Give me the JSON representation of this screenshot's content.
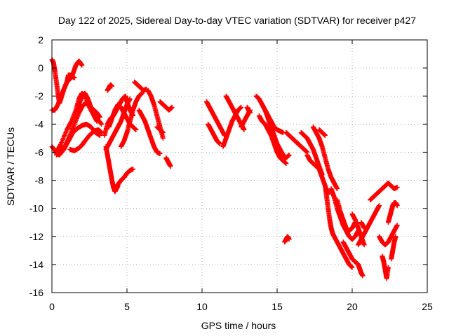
{
  "chart_data": {
    "type": "scatter",
    "title": "Day 122 of 2025, Sidereal Day-to-day VTEC variation (SDTVAR) for receiver p427",
    "xlabel": "GPS time / hours",
    "ylabel": "SDTVAR / TECUs",
    "xlim": [
      0,
      25
    ],
    "ylim": [
      -16,
      2
    ],
    "xticks": [
      0,
      5,
      10,
      15,
      20,
      25
    ],
    "yticks": [
      2,
      0,
      -2,
      -4,
      -6,
      -8,
      -10,
      -12,
      -14,
      -16
    ],
    "grid": true,
    "marker": "+",
    "series": [
      {
        "name": "SDTVAR",
        "color": "#ff0000",
        "tracks": [
          {
            "x": [
              0.0,
              0.2,
              0.4,
              0.6,
              0.8,
              1.0,
              1.2,
              1.4,
              1.6,
              1.8,
              2.0
            ],
            "y": [
              -3.0,
              -3.0,
              -2.6,
              -2.1,
              -1.5,
              -1.0,
              -0.8,
              -0.4,
              0.2,
              0.5,
              0.2
            ]
          },
          {
            "x": [
              0.0,
              0.1,
              0.2,
              0.3,
              0.4,
              0.5,
              0.6,
              0.8,
              1.0,
              1.1,
              1.2,
              1.5
            ],
            "y": [
              0.6,
              0.4,
              -0.2,
              -1.0,
              -1.8,
              -2.5,
              -2.2,
              -1.5,
              -1.0,
              -0.5,
              -0.5,
              -0.7
            ]
          },
          {
            "x": [
              0.0,
              0.3,
              0.6,
              1.0,
              1.3,
              1.6,
              1.8,
              2.0,
              2.2,
              2.5,
              2.8,
              3.0
            ],
            "y": [
              -5.6,
              -6.0,
              -5.4,
              -4.4,
              -3.8,
              -3.0,
              -2.2,
              -1.8,
              -2.0,
              -2.8,
              -3.4,
              -3.8
            ]
          },
          {
            "x": [
              0.2,
              0.5,
              0.8,
              1.1,
              1.4,
              1.7,
              2.0,
              2.3,
              2.6,
              2.9,
              3.2
            ],
            "y": [
              -6.0,
              -6.2,
              -5.8,
              -5.2,
              -4.6,
              -4.3,
              -4.1,
              -4.0,
              -4.2,
              -4.6,
              -4.8
            ]
          },
          {
            "x": [
              0.3,
              0.6,
              0.9,
              1.2,
              1.5,
              1.8,
              2.1,
              2.4,
              2.7,
              3.0,
              3.3
            ],
            "y": [
              -6.2,
              -5.9,
              -5.5,
              -4.8,
              -4.0,
              -3.2,
              -2.6,
              -2.5,
              -3.0,
              -3.6,
              -4.0
            ]
          },
          {
            "x": [
              1.2,
              1.5,
              1.8,
              2.0,
              2.2,
              2.5,
              2.8,
              3.1,
              3.3
            ],
            "y": [
              -5.8,
              -5.9,
              -5.7,
              -5.5,
              -5.2,
              -4.8,
              -4.5,
              -4.4,
              -4.6
            ]
          },
          {
            "x": [
              1.6,
              1.8,
              2.0,
              2.2,
              2.4,
              2.6,
              2.8,
              3.0,
              3.2
            ],
            "y": [
              -3.2,
              -2.6,
              -2.0,
              -1.8,
              -2.2,
              -2.8,
              -3.0,
              -3.2,
              -3.5
            ]
          },
          {
            "x": [
              3.6,
              3.7,
              3.8,
              3.9,
              4.0,
              4.1,
              4.2,
              4.3,
              4.4
            ],
            "y": [
              -5.6,
              -6.2,
              -6.8,
              -7.4,
              -8.0,
              -8.5,
              -8.8,
              -8.6,
              -8.4
            ]
          },
          {
            "x": [
              3.5,
              3.7,
              3.9,
              4.1,
              4.3,
              4.5,
              4.7,
              4.9,
              5.0,
              5.2,
              5.4
            ],
            "y": [
              -4.8,
              -4.0,
              -3.6,
              -3.4,
              -3.0,
              -2.6,
              -2.2,
              -2.0,
              -2.4,
              -3.0,
              -3.4
            ]
          },
          {
            "x": [
              3.6,
              3.8,
              4.0,
              4.2,
              4.4,
              4.6,
              4.8,
              5.0,
              5.2
            ],
            "y": [
              -5.8,
              -5.4,
              -5.0,
              -4.6,
              -4.2,
              -3.8,
              -3.2,
              -2.6,
              -2.2
            ]
          },
          {
            "x": [
              3.8,
              4.0,
              4.2,
              4.4,
              4.6,
              4.8,
              5.0,
              5.2,
              5.4,
              5.6
            ],
            "y": [
              -4.2,
              -3.6,
              -3.0,
              -2.6,
              -2.8,
              -3.2,
              -3.6,
              -4.0,
              -4.2,
              -4.4
            ]
          },
          {
            "x": [
              4.2,
              4.4,
              4.6,
              4.8,
              5.0,
              5.2,
              5.4
            ],
            "y": [
              -8.6,
              -8.3,
              -8.0,
              -7.8,
              -7.5,
              -7.3,
              -7.2
            ]
          },
          {
            "x": [
              4.6,
              4.8,
              5.0,
              5.2,
              5.4,
              5.6,
              5.8,
              6.0
            ],
            "y": [
              -5.6,
              -5.2,
              -4.6,
              -3.8,
              -3.0,
              -2.4,
              -2.0,
              -1.8
            ]
          },
          {
            "x": [
              3.7,
              3.8,
              3.9,
              4.0
            ],
            "y": [
              -1.6,
              -1.4,
              -1.2,
              -1.3
            ]
          },
          {
            "x": [
              5.5,
              5.7,
              5.9,
              6.1,
              6.3
            ],
            "y": [
              -1.0,
              -1.2,
              -1.4,
              -1.6,
              -1.5
            ]
          },
          {
            "x": [
              5.8,
              6.0,
              6.2,
              6.4,
              6.6,
              6.8,
              7.0,
              7.2
            ],
            "y": [
              -3.0,
              -3.4,
              -3.8,
              -4.4,
              -5.0,
              -5.6,
              -6.0,
              -6.1
            ]
          },
          {
            "x": [
              6.4,
              6.6,
              6.8,
              7.0,
              7.2,
              7.4
            ],
            "y": [
              -1.6,
              -2.0,
              -2.6,
              -3.4,
              -4.2,
              -5.0
            ]
          },
          {
            "x": [
              7.2,
              7.4,
              7.6,
              7.8,
              8.0
            ],
            "y": [
              -2.4,
              -2.6,
              -2.8,
              -3.0,
              -2.8
            ]
          },
          {
            "x": [
              7.6,
              7.7,
              7.8,
              7.9
            ],
            "y": [
              -6.4,
              -6.6,
              -6.8,
              -7.0
            ]
          },
          {
            "x": [
              7.0,
              7.2,
              7.4
            ],
            "y": [
              -4.2,
              -4.4,
              -4.6
            ]
          },
          {
            "x": [
              10.3,
              10.5,
              10.7,
              10.9,
              11.1,
              11.3,
              11.5
            ],
            "y": [
              -2.4,
              -2.8,
              -3.2,
              -3.6,
              -4.0,
              -4.4,
              -4.8
            ]
          },
          {
            "x": [
              10.4,
              10.6,
              10.8,
              11.0,
              11.2
            ],
            "y": [
              -4.0,
              -4.4,
              -4.8,
              -5.2,
              -5.4
            ]
          },
          {
            "x": [
              11.4,
              11.6,
              11.8,
              12.0,
              12.2,
              12.4,
              12.6
            ],
            "y": [
              -5.6,
              -5.0,
              -4.4,
              -3.8,
              -3.4,
              -3.0,
              -2.8
            ]
          },
          {
            "x": [
              11.6,
              11.8,
              12.0,
              12.2,
              12.4,
              12.6,
              12.8
            ],
            "y": [
              -2.0,
              -2.4,
              -2.8,
              -3.2,
              -3.6,
              -4.0,
              -4.4
            ]
          },
          {
            "x": [
              12.6,
              12.8,
              13.0,
              13.2
            ],
            "y": [
              -4.2,
              -3.8,
              -3.4,
              -3.0
            ]
          },
          {
            "x": [
              13.0,
              13.1,
              13.2
            ],
            "y": [
              -2.8,
              -3.0,
              -3.2
            ]
          },
          {
            "x": [
              13.6,
              13.8,
              14.0,
              14.2,
              14.4,
              14.6,
              14.8,
              15.0,
              15.2,
              15.4
            ],
            "y": [
              -2.0,
              -2.2,
              -2.6,
              -3.0,
              -3.4,
              -3.8,
              -4.2,
              -4.4,
              -4.5,
              -4.6
            ]
          },
          {
            "x": [
              13.8,
              14.0,
              14.2,
              14.4,
              14.6,
              14.8,
              15.0,
              15.2,
              15.4,
              15.6
            ],
            "y": [
              -3.4,
              -3.8,
              -4.0,
              -4.4,
              -4.8,
              -5.4,
              -6.0,
              -6.4,
              -6.6,
              -6.8
            ]
          },
          {
            "x": [
              14.0,
              14.2,
              14.4,
              14.6,
              14.8,
              15.0,
              15.2,
              15.4,
              15.6,
              15.8
            ],
            "y": [
              -2.6,
              -3.0,
              -3.6,
              -4.2,
              -4.8,
              -5.4,
              -5.8,
              -6.2,
              -6.4,
              -6.2
            ]
          },
          {
            "x": [
              15.6,
              15.8,
              16.0,
              16.2,
              16.4,
              16.6,
              16.8,
              17.0
            ],
            "y": [
              -4.6,
              -4.8,
              -5.0,
              -5.2,
              -5.4,
              -5.6,
              -5.8,
              -6.0
            ]
          },
          {
            "x": [
              16.6,
              16.8,
              17.0,
              17.2,
              17.4,
              17.6,
              17.8,
              18.0
            ],
            "y": [
              -4.6,
              -4.8,
              -5.0,
              -5.4,
              -5.8,
              -6.4,
              -7.0,
              -7.6
            ]
          },
          {
            "x": [
              17.0,
              17.2,
              17.4,
              17.6,
              17.8,
              18.0,
              18.2,
              18.4
            ],
            "y": [
              -6.2,
              -6.6,
              -6.8,
              -7.0,
              -7.2,
              -7.8,
              -8.4,
              -9.0
            ]
          },
          {
            "x": [
              17.4,
              17.6,
              17.8,
              18.0,
              18.2,
              18.4,
              18.6,
              18.8,
              19.0
            ],
            "y": [
              -4.2,
              -4.6,
              -5.0,
              -5.6,
              -6.4,
              -7.2,
              -7.8,
              -8.2,
              -8.6
            ]
          },
          {
            "x": [
              18.2,
              18.3,
              18.4,
              18.5,
              18.6,
              18.7,
              18.8,
              19.0,
              19.2,
              19.4,
              19.6,
              19.8,
              20.0
            ],
            "y": [
              -8.4,
              -9.2,
              -10.0,
              -10.8,
              -11.4,
              -11.8,
              -12.0,
              -12.4,
              -12.8,
              -13.2,
              -13.6,
              -14.0,
              -14.2
            ]
          },
          {
            "x": [
              18.6,
              18.8,
              19.0,
              19.2,
              19.4,
              19.6,
              19.8,
              20.0,
              20.2,
              20.4
            ],
            "y": [
              -8.6,
              -9.2,
              -10.0,
              -10.6,
              -11.2,
              -11.6,
              -12.0,
              -12.2,
              -12.0,
              -11.6
            ]
          },
          {
            "x": [
              19.0,
              19.2,
              19.4,
              19.6,
              19.8,
              20.0,
              20.2
            ],
            "y": [
              -9.4,
              -10.2,
              -10.8,
              -11.4,
              -11.6,
              -11.4,
              -11.0
            ]
          },
          {
            "x": [
              19.4,
              19.6,
              19.8,
              20.0,
              20.2,
              20.4
            ],
            "y": [
              -12.4,
              -12.8,
              -13.2,
              -13.6,
              -13.8,
              -14.0
            ]
          },
          {
            "x": [
              20.0,
              20.2,
              20.4,
              20.6,
              20.8
            ],
            "y": [
              -10.4,
              -10.8,
              -11.4,
              -12.0,
              -12.6
            ]
          },
          {
            "x": [
              20.4,
              20.6,
              20.8,
              21.0,
              21.2,
              21.4,
              21.6,
              21.8
            ],
            "y": [
              -12.6,
              -12.2,
              -11.8,
              -11.4,
              -11.0,
              -10.6,
              -10.2,
              -9.8
            ]
          },
          {
            "x": [
              21.2,
              21.4,
              21.6,
              21.8,
              22.0,
              22.2,
              22.4,
              22.6,
              22.8,
              23.0
            ],
            "y": [
              -9.4,
              -9.2,
              -9.0,
              -8.8,
              -8.6,
              -8.4,
              -8.2,
              -8.4,
              -8.6,
              -8.5
            ]
          },
          {
            "x": [
              21.8,
              22.0,
              22.2,
              22.4,
              22.6,
              22.8,
              23.0
            ],
            "y": [
              -12.0,
              -12.4,
              -12.6,
              -12.4,
              -12.0,
              -11.6,
              -11.2
            ]
          },
          {
            "x": [
              22.4,
              22.5,
              22.6,
              22.7,
              22.8,
              22.9,
              23.0
            ],
            "y": [
              -11.0,
              -10.6,
              -10.2,
              -9.8,
              -9.6,
              -9.6,
              -9.8
            ]
          },
          {
            "x": [
              22.0,
              22.1,
              22.2,
              22.3,
              22.4
            ],
            "y": [
              -13.4,
              -13.8,
              -14.4,
              -15.0,
              -14.2
            ]
          },
          {
            "x": [
              22.6,
              22.7,
              22.8,
              22.9
            ],
            "y": [
              -13.6,
              -13.0,
              -12.4,
              -12.0
            ]
          },
          {
            "x": [
              20.4,
              20.5,
              20.6,
              20.7
            ],
            "y": [
              -14.0,
              -14.3,
              -14.6,
              -14.8
            ]
          },
          {
            "x": [
              15.5,
              15.6,
              15.7,
              15.8
            ],
            "y": [
              -12.4,
              -12.2,
              -12.0,
              -12.2
            ]
          },
          {
            "x": [
              17.8,
              18.0,
              18.2
            ],
            "y": [
              -4.4,
              -4.6,
              -4.8
            ]
          },
          {
            "x": [
              20.6,
              20.7,
              20.8
            ],
            "y": [
              -11.0,
              -11.2,
              -11.4
            ]
          }
        ]
      }
    ]
  }
}
